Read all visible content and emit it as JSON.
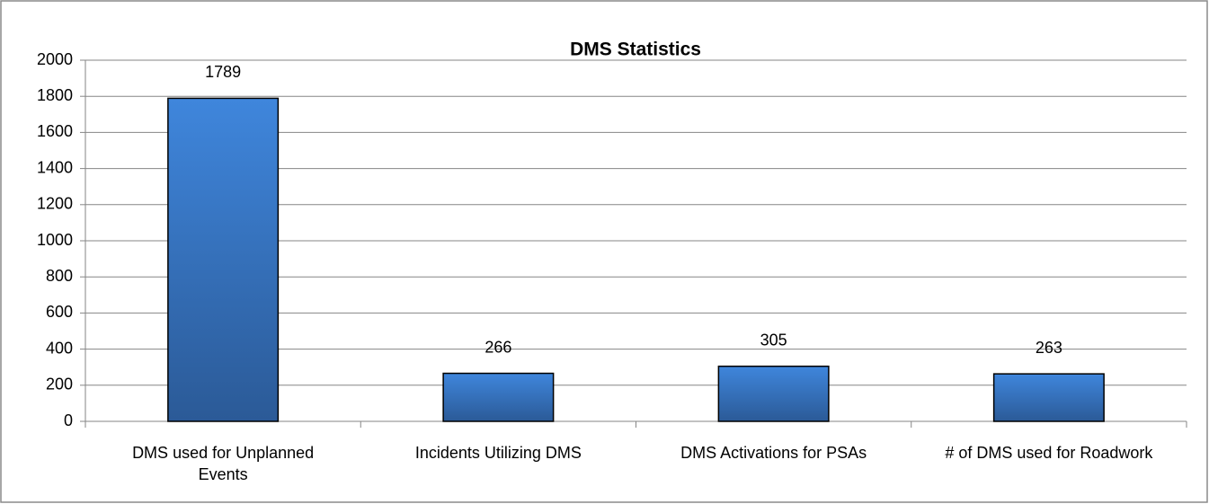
{
  "chart_data": {
    "type": "bar",
    "title": "DMS Statistics",
    "categories": [
      "DMS used for Unplanned Events",
      "Incidents Utilizing DMS",
      "DMS Activations for PSAs",
      "# of DMS used for Roadwork"
    ],
    "values": [
      1789,
      266,
      305,
      263
    ],
    "color": "#3a7bd0",
    "ylim": [
      0,
      2000
    ],
    "yticks": [
      0,
      200,
      400,
      600,
      800,
      1000,
      1200,
      1400,
      1600,
      1800,
      2000
    ],
    "grid": true
  }
}
